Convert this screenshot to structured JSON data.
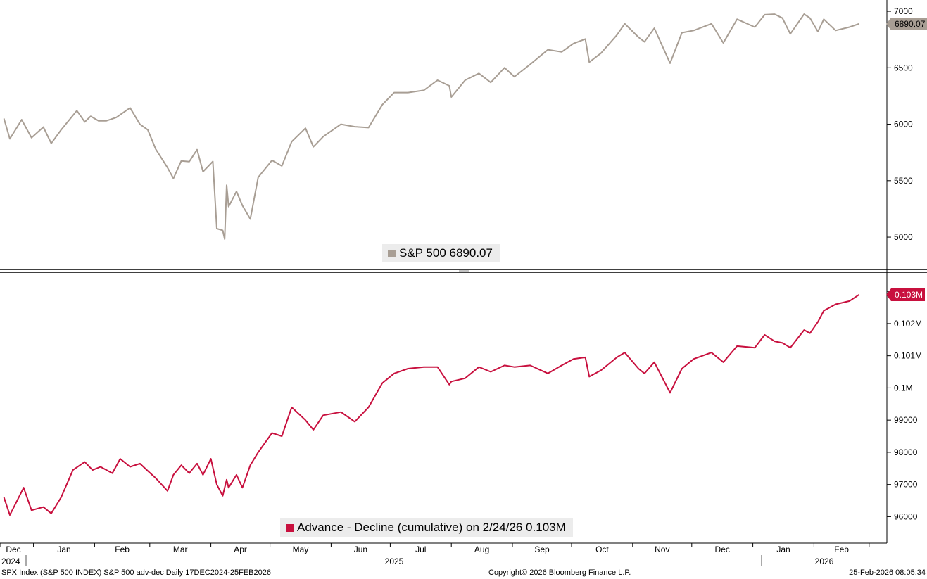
{
  "footer": {
    "left": "SPX Index (S&P 500 INDEX) S&P 500 adv-dec Daily 17DEC2024-25FEB2026",
    "center": "Copyright© 2026 Bloomberg Finance L.P.",
    "right": "25-Feb-2026 08:05:34"
  },
  "x_axis": {
    "months": [
      "Dec",
      "Jan",
      "Feb",
      "Mar",
      "Apr",
      "May",
      "Jun",
      "Jul",
      "Aug",
      "Sep",
      "Oct",
      "Nov",
      "Dec",
      "Jan",
      "Feb"
    ],
    "years": [
      "2024",
      "2025",
      "2026"
    ]
  },
  "colors": {
    "spx": "#a89e94",
    "ad": "#c8103e"
  },
  "chart_data": [
    {
      "type": "line",
      "legend": "S&P 500 6890.07",
      "last_value_label": "6890.07",
      "y_ticks": [
        "5000",
        "5500",
        "6000",
        "6500",
        "7000"
      ],
      "ylim": [
        4720,
        7100
      ],
      "series": [
        {
          "name": "S&P 500",
          "points": [
            [
              "2024-12-17",
              6050
            ],
            [
              "2024-12-20",
              5870
            ],
            [
              "2024-12-26",
              6040
            ],
            [
              "2024-12-31",
              5880
            ],
            [
              "2025-01-06",
              5975
            ],
            [
              "2025-01-10",
              5830
            ],
            [
              "2025-01-15",
              5950
            ],
            [
              "2025-01-23",
              6120
            ],
            [
              "2025-01-27",
              6020
            ],
            [
              "2025-01-30",
              6070
            ],
            [
              "2025-02-03",
              6030
            ],
            [
              "2025-02-07",
              6030
            ],
            [
              "2025-02-12",
              6060
            ],
            [
              "2025-02-19",
              6145
            ],
            [
              "2025-02-24",
              6000
            ],
            [
              "2025-02-28",
              5950
            ],
            [
              "2025-03-04",
              5780
            ],
            [
              "2025-03-10",
              5615
            ],
            [
              "2025-03-13",
              5520
            ],
            [
              "2025-03-17",
              5675
            ],
            [
              "2025-03-21",
              5668
            ],
            [
              "2025-03-25",
              5775
            ],
            [
              "2025-03-28",
              5580
            ],
            [
              "2025-04-02",
              5670
            ],
            [
              "2025-04-04",
              5075
            ],
            [
              "2025-04-07",
              5060
            ],
            [
              "2025-04-08",
              4982
            ],
            [
              "2025-04-09",
              5460
            ],
            [
              "2025-04-10",
              5270
            ],
            [
              "2025-04-14",
              5405
            ],
            [
              "2025-04-17",
              5280
            ],
            [
              "2025-04-21",
              5160
            ],
            [
              "2025-04-25",
              5530
            ],
            [
              "2025-05-02",
              5680
            ],
            [
              "2025-05-07",
              5630
            ],
            [
              "2025-05-12",
              5845
            ],
            [
              "2025-05-19",
              5965
            ],
            [
              "2025-05-23",
              5800
            ],
            [
              "2025-05-28",
              5890
            ],
            [
              "2025-06-06",
              6000
            ],
            [
              "2025-06-13",
              5978
            ],
            [
              "2025-06-20",
              5970
            ],
            [
              "2025-06-27",
              6173
            ],
            [
              "2025-07-03",
              6280
            ],
            [
              "2025-07-10",
              6280
            ],
            [
              "2025-07-18",
              6300
            ],
            [
              "2025-07-25",
              6390
            ],
            [
              "2025-07-31",
              6340
            ],
            [
              "2025-08-01",
              6240
            ],
            [
              "2025-08-08",
              6390
            ],
            [
              "2025-08-15",
              6450
            ],
            [
              "2025-08-21",
              6370
            ],
            [
              "2025-08-28",
              6500
            ],
            [
              "2025-09-02",
              6420
            ],
            [
              "2025-09-10",
              6530
            ],
            [
              "2025-09-19",
              6660
            ],
            [
              "2025-09-26",
              6640
            ],
            [
              "2025-10-02",
              6715
            ],
            [
              "2025-10-08",
              6755
            ],
            [
              "2025-10-10",
              6550
            ],
            [
              "2025-10-16",
              6630
            ],
            [
              "2025-10-24",
              6790
            ],
            [
              "2025-10-28",
              6890
            ],
            [
              "2025-11-04",
              6770
            ],
            [
              "2025-11-07",
              6730
            ],
            [
              "2025-11-12",
              6850
            ],
            [
              "2025-11-20",
              6540
            ],
            [
              "2025-11-26",
              6810
            ],
            [
              "2025-12-02",
              6830
            ],
            [
              "2025-12-11",
              6890
            ],
            [
              "2025-12-17",
              6720
            ],
            [
              "2025-12-24",
              6930
            ],
            [
              "2026-01-02",
              6860
            ],
            [
              "2026-01-07",
              6970
            ],
            [
              "2026-01-12",
              6975
            ],
            [
              "2026-01-16",
              6940
            ],
            [
              "2026-01-20",
              6800
            ],
            [
              "2026-01-27",
              6975
            ],
            [
              "2026-01-30",
              6940
            ],
            [
              "2026-02-03",
              6820
            ],
            [
              "2026-02-06",
              6930
            ],
            [
              "2026-02-12",
              6830
            ],
            [
              "2026-02-19",
              6860
            ],
            [
              "2026-02-24",
              6890.07
            ]
          ]
        }
      ]
    },
    {
      "type": "line",
      "legend": "Advance - Decline (cumulative) on 2/24/26 0.103M",
      "last_value_label": "0.103M",
      "y_ticks": [
        "96000",
        "97000",
        "98000",
        "99000",
        "0.1M",
        "0.101M",
        "0.102M",
        "0.103M"
      ],
      "y_tick_values": [
        96000,
        97000,
        98000,
        99000,
        100000,
        101000,
        102000,
        103000
      ],
      "ylim": [
        95200,
        103550
      ],
      "series": [
        {
          "name": "Advance - Decline (cumulative)",
          "points": [
            [
              "2024-12-17",
              96600
            ],
            [
              "2024-12-20",
              96050
            ],
            [
              "2024-12-27",
              96900
            ],
            [
              "2024-12-31",
              96200
            ],
            [
              "2025-01-06",
              96300
            ],
            [
              "2025-01-10",
              96100
            ],
            [
              "2025-01-15",
              96600
            ],
            [
              "2025-01-21",
              97450
            ],
            [
              "2025-01-27",
              97700
            ],
            [
              "2025-01-31",
              97450
            ],
            [
              "2025-02-04",
              97550
            ],
            [
              "2025-02-10",
              97350
            ],
            [
              "2025-02-14",
              97800
            ],
            [
              "2025-02-19",
              97550
            ],
            [
              "2025-02-24",
              97650
            ],
            [
              "2025-02-28",
              97420
            ],
            [
              "2025-03-04",
              97200
            ],
            [
              "2025-03-10",
              96800
            ],
            [
              "2025-03-13",
              97300
            ],
            [
              "2025-03-17",
              97600
            ],
            [
              "2025-03-21",
              97350
            ],
            [
              "2025-03-25",
              97650
            ],
            [
              "2025-03-28",
              97300
            ],
            [
              "2025-04-01",
              97800
            ],
            [
              "2025-04-04",
              97000
            ],
            [
              "2025-04-07",
              96650
            ],
            [
              "2025-04-09",
              97150
            ],
            [
              "2025-04-10",
              96900
            ],
            [
              "2025-04-14",
              97300
            ],
            [
              "2025-04-17",
              96900
            ],
            [
              "2025-04-21",
              97600
            ],
            [
              "2025-04-25",
              98000
            ],
            [
              "2025-05-02",
              98600
            ],
            [
              "2025-05-07",
              98500
            ],
            [
              "2025-05-12",
              99400
            ],
            [
              "2025-05-19",
              99000
            ],
            [
              "2025-05-23",
              98700
            ],
            [
              "2025-05-28",
              99150
            ],
            [
              "2025-06-06",
              99250
            ],
            [
              "2025-06-13",
              98950
            ],
            [
              "2025-06-20",
              99400
            ],
            [
              "2025-06-27",
              100150
            ],
            [
              "2025-07-03",
              100450
            ],
            [
              "2025-07-10",
              100600
            ],
            [
              "2025-07-18",
              100650
            ],
            [
              "2025-07-25",
              100650
            ],
            [
              "2025-07-31",
              100100
            ],
            [
              "2025-08-01",
              100200
            ],
            [
              "2025-08-08",
              100300
            ],
            [
              "2025-08-15",
              100650
            ],
            [
              "2025-08-21",
              100500
            ],
            [
              "2025-08-28",
              100700
            ],
            [
              "2025-09-02",
              100650
            ],
            [
              "2025-09-10",
              100700
            ],
            [
              "2025-09-19",
              100450
            ],
            [
              "2025-09-26",
              100700
            ],
            [
              "2025-10-02",
              100900
            ],
            [
              "2025-10-08",
              100950
            ],
            [
              "2025-10-10",
              100350
            ],
            [
              "2025-10-16",
              100550
            ],
            [
              "2025-10-24",
              100950
            ],
            [
              "2025-10-28",
              101100
            ],
            [
              "2025-11-04",
              100600
            ],
            [
              "2025-11-07",
              100450
            ],
            [
              "2025-11-12",
              100800
            ],
            [
              "2025-11-20",
              99850
            ],
            [
              "2025-11-26",
              100600
            ],
            [
              "2025-12-02",
              100900
            ],
            [
              "2025-12-11",
              101100
            ],
            [
              "2025-12-17",
              100800
            ],
            [
              "2025-12-24",
              101300
            ],
            [
              "2026-01-02",
              101250
            ],
            [
              "2026-01-07",
              101650
            ],
            [
              "2026-01-12",
              101450
            ],
            [
              "2026-01-16",
              101400
            ],
            [
              "2026-01-20",
              101250
            ],
            [
              "2026-01-27",
              101800
            ],
            [
              "2026-01-30",
              101700
            ],
            [
              "2026-02-03",
              102050
            ],
            [
              "2026-02-06",
              102400
            ],
            [
              "2026-02-12",
              102600
            ],
            [
              "2026-02-19",
              102700
            ],
            [
              "2026-02-24",
              102900
            ]
          ]
        }
      ]
    }
  ]
}
